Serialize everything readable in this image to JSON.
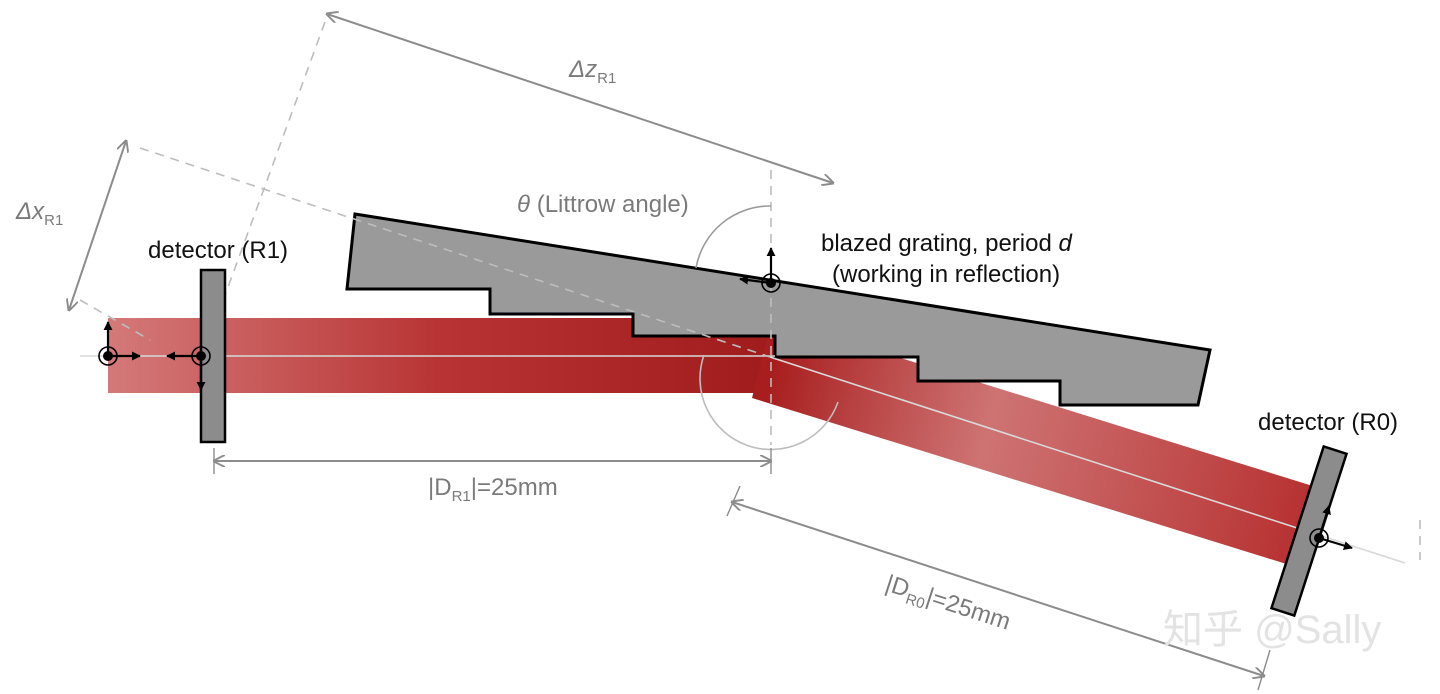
{
  "labels": {
    "detector_r1": "detector (R1)",
    "detector_r0": "detector (R0)",
    "grating_line1": "blazed grating, period",
    "grating_period_symbol": "d",
    "grating_line2": "(working in reflection)",
    "theta_symbol": "θ",
    "theta_text": "(Littrow angle)",
    "delta_z_main": "Δz",
    "delta_z_sub": "R1",
    "delta_x_main": "Δx",
    "delta_x_sub": "R1",
    "dr1_prefix": "|D",
    "dr1_sub": "R1",
    "dr1_suffix": "|=25mm",
    "dr0_prefix": "|D",
    "dr0_sub": "R0",
    "dr0_suffix": "|=25mm",
    "watermark": "知乎 @Sally"
  },
  "colors": {
    "beam": "#b22222",
    "grating_fill": "#9a9a9a",
    "detector_fill": "#8c8c8c",
    "dimension_line": "#8c8c8c",
    "label_dark": "#111111",
    "label_grey": "#7a7a7a"
  }
}
